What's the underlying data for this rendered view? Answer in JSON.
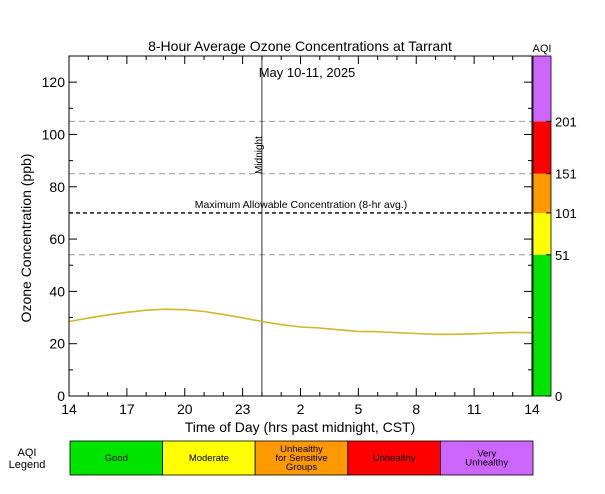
{
  "chart_data": {
    "type": "line",
    "title": "8-Hour Average Ozone Concentrations at Tarrant",
    "subtitle": "May 10-11, 2025",
    "xlabel": "Time of Day (hrs past midnight, CST)",
    "ylabel": "Ozone Concentration (ppb)",
    "xlim": [
      14,
      38
    ],
    "ylim": [
      0,
      130
    ],
    "x_ticks": [
      {
        "value": 14,
        "label": "14"
      },
      {
        "value": 17,
        "label": "17"
      },
      {
        "value": 20,
        "label": "20"
      },
      {
        "value": 23,
        "label": "23"
      },
      {
        "value": 26,
        "label": "2"
      },
      {
        "value": 29,
        "label": "5"
      },
      {
        "value": 32,
        "label": "8"
      },
      {
        "value": 35,
        "label": "11"
      },
      {
        "value": 38,
        "label": "14"
      }
    ],
    "y_ticks": [
      0,
      20,
      40,
      60,
      80,
      100,
      120
    ],
    "midnight": {
      "x": 24,
      "label": "Midnight"
    },
    "reference_lines": [
      {
        "y": 105,
        "style": "gray-dashed"
      },
      {
        "y": 85,
        "style": "gray-dashed"
      },
      {
        "y": 70,
        "style": "black-dashed",
        "label": "Maximum Allowable Concentration (8-hr avg.)"
      },
      {
        "y": 54,
        "style": "gray-dashed"
      }
    ],
    "series": [
      {
        "color": "#d4b62a",
        "x": [
          14,
          15,
          16,
          17,
          18,
          19,
          20,
          21,
          22,
          23,
          24,
          25,
          26,
          27,
          28,
          29,
          30,
          31,
          32,
          33,
          34,
          35,
          36,
          37,
          38
        ],
        "y": [
          28.5,
          29.8,
          31.0,
          32.0,
          32.8,
          33.2,
          33.0,
          32.3,
          31.2,
          29.9,
          28.5,
          27.3,
          26.4,
          26.0,
          25.3,
          24.7,
          24.6,
          24.2,
          23.9,
          23.6,
          23.6,
          23.8,
          24.1,
          24.3,
          24.2
        ]
      }
    ],
    "aqi_scale": {
      "title": "AQI",
      "bands": [
        {
          "from": 0,
          "to": 54,
          "color": "#00e400"
        },
        {
          "from": 54,
          "to": 70,
          "color": "#ffff00"
        },
        {
          "from": 70,
          "to": 85,
          "color": "#ff9900"
        },
        {
          "from": 85,
          "to": 105,
          "color": "#ff0000"
        },
        {
          "from": 105,
          "to": 130,
          "color": "#cc66ff"
        }
      ],
      "labels": [
        {
          "at": 0,
          "text": "0"
        },
        {
          "at": 54,
          "text": "51"
        },
        {
          "at": 70,
          "text": "101"
        },
        {
          "at": 85,
          "text": "151"
        },
        {
          "at": 105,
          "text": "201"
        }
      ]
    },
    "legend": {
      "title_line1": "AQI",
      "title_line2": "Legend",
      "items": [
        {
          "lines": [
            "Good"
          ],
          "color": "#00e400"
        },
        {
          "lines": [
            "Moderate"
          ],
          "color": "#ffff00"
        },
        {
          "lines": [
            "Unhealthy",
            "for Sensitive",
            "Groups"
          ],
          "color": "#ff9900"
        },
        {
          "lines": [
            "Unhealthy"
          ],
          "color": "#ff0000"
        },
        {
          "lines": [
            "Very",
            "Unhealthy"
          ],
          "color": "#cc66ff"
        }
      ]
    }
  }
}
